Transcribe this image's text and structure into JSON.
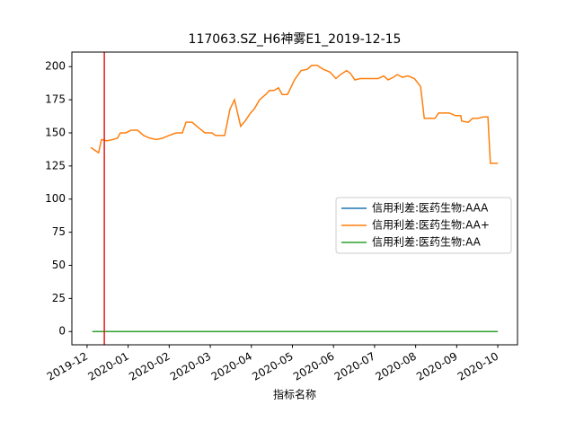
{
  "chart_data": {
    "type": "line",
    "title": "117063.SZ_H6神雾E1_2019-12-15",
    "x_label": "指标名称",
    "xlim": [
      -0.37,
      10.48
    ],
    "xticks": [
      {
        "value": 0,
        "label": "2019-12"
      },
      {
        "value": 1,
        "label": "2020-01"
      },
      {
        "value": 2,
        "label": "2020-02"
      },
      {
        "value": 3,
        "label": "2020-03"
      },
      {
        "value": 4,
        "label": "2020-04"
      },
      {
        "value": 5,
        "label": "2020-05"
      },
      {
        "value": 6,
        "label": "2020-06"
      },
      {
        "value": 7,
        "label": "2020-07"
      },
      {
        "value": 8,
        "label": "2020-08"
      },
      {
        "value": 9,
        "label": "2020-09"
      },
      {
        "value": 10,
        "label": "2020-10"
      }
    ],
    "ylim": [
      -10,
      211
    ],
    "yticks": [
      0,
      25,
      50,
      75,
      100,
      125,
      150,
      175,
      200
    ],
    "legend": "center right",
    "vline": {
      "x": 0.42,
      "color": "#e41a1c"
    },
    "series": [
      {
        "name": "信用利差:医药生物:AAA",
        "color": "#1f77b4",
        "x": [
          0.13,
          10.0
        ],
        "values": [
          0,
          0
        ]
      },
      {
        "name": "信用利差:医药生物:AA+",
        "color": "#ff7f0e",
        "x": [
          0.09,
          0.28,
          0.35,
          0.48,
          0.63,
          0.74,
          0.81,
          0.94,
          1.07,
          1.23,
          1.38,
          1.53,
          1.69,
          1.84,
          1.99,
          2.17,
          2.32,
          2.41,
          2.56,
          2.67,
          2.87,
          3.04,
          3.13,
          3.35,
          3.48,
          3.59,
          3.74,
          3.85,
          3.98,
          4.07,
          4.2,
          4.35,
          4.44,
          4.55,
          4.66,
          4.75,
          4.88,
          5.05,
          5.21,
          5.36,
          5.47,
          5.6,
          5.75,
          5.91,
          6.06,
          6.17,
          6.32,
          6.41,
          6.52,
          6.65,
          6.76,
          6.94,
          7.09,
          7.22,
          7.33,
          7.46,
          7.55,
          7.68,
          7.81,
          7.97,
          8.12,
          8.21,
          8.36,
          8.47,
          8.56,
          8.69,
          8.82,
          8.97,
          9.1,
          9.12,
          9.28,
          9.39,
          9.52,
          9.65,
          9.76,
          9.82,
          10.0
        ],
        "values": [
          139,
          135,
          145,
          144,
          145,
          146,
          150,
          150,
          152,
          152,
          148,
          146,
          145,
          146,
          148,
          150,
          150,
          158,
          158,
          155,
          150,
          150,
          148,
          148,
          168,
          175,
          155,
          159,
          165,
          168,
          175,
          179,
          182,
          182,
          184,
          179,
          179,
          190,
          197,
          198,
          201,
          201,
          198,
          196,
          191,
          194,
          197,
          195,
          190,
          191,
          191,
          191,
          191,
          193,
          190,
          192,
          194,
          192,
          193,
          191,
          185,
          161,
          161,
          161,
          165,
          165,
          165,
          163,
          163,
          159,
          158,
          161,
          161,
          162,
          162,
          127,
          127
        ]
      },
      {
        "name": "信用利差:医药生物:AA",
        "color": "#2ca02c",
        "x": [
          0.13,
          10.0
        ],
        "values": [
          0,
          0
        ]
      }
    ]
  }
}
